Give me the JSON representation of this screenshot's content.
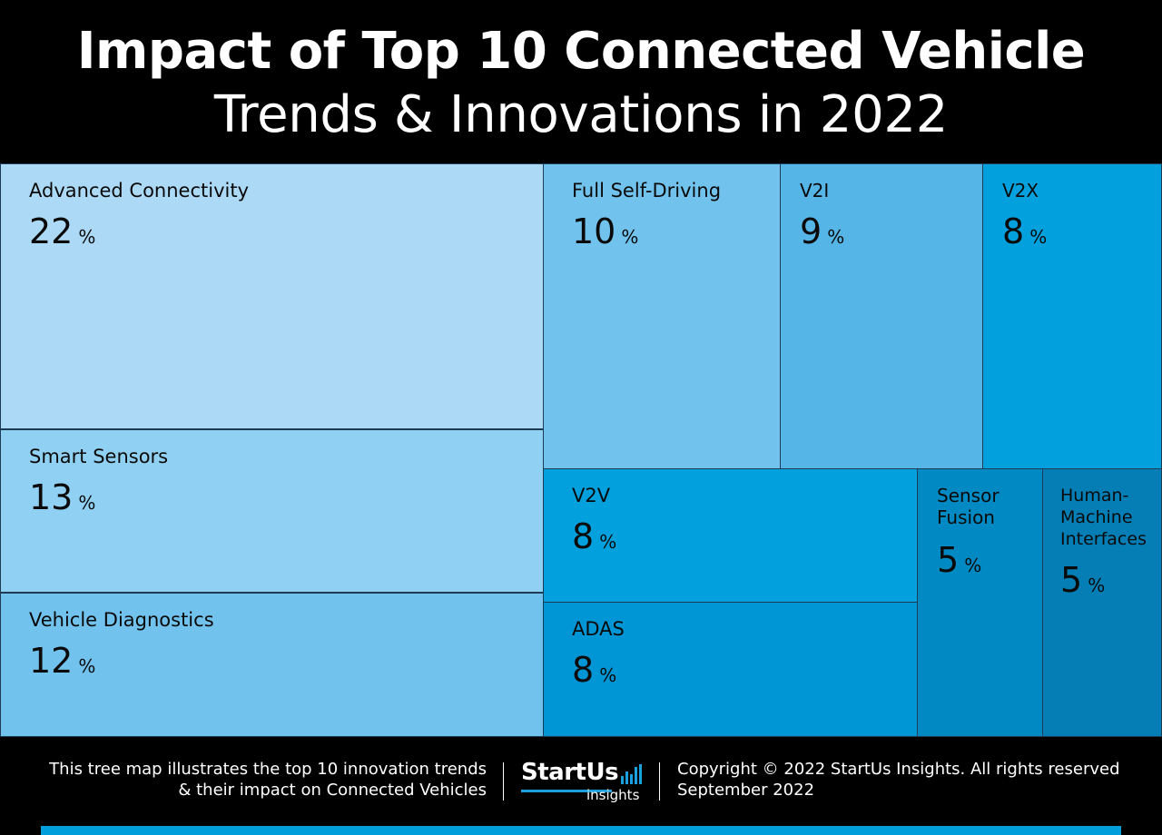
{
  "header": {
    "title": "Impact of Top 10 Connected Vehicle",
    "subtitle": "Trends & Innovations in 2022"
  },
  "chart_data": {
    "type": "treemap",
    "title": "Impact of Top 10 Connected Vehicle",
    "subtitle": "Trends & Innovations in 2022",
    "unit": "%",
    "items": [
      {
        "name": "Advanced Connectivity",
        "value": 22,
        "color": "#acd9f6"
      },
      {
        "name": "Smart Sensors",
        "value": 13,
        "color": "#90d0f2"
      },
      {
        "name": "Vehicle Diagnostics",
        "value": 12,
        "color": "#71c3ee"
      },
      {
        "name": "Full Self-Driving",
        "value": 10,
        "color": "#71c3ee"
      },
      {
        "name": "V2I",
        "value": 9,
        "color": "#55b5e7"
      },
      {
        "name": "V2X",
        "value": 8,
        "color": "#02a1de"
      },
      {
        "name": "V2V",
        "value": 8,
        "color": "#02a1de"
      },
      {
        "name": "ADAS",
        "value": 8,
        "color": "#0095d5"
      },
      {
        "name": "Sensor Fusion",
        "value": 5,
        "color": "#0189c3"
      },
      {
        "name": "Human-Machine Interfaces",
        "value": 5,
        "color": "#047eb5"
      }
    ]
  },
  "footer": {
    "description_line1": "This tree map illustrates the top 10 innovation trends",
    "description_line2": "& their impact on Connected Vehicles",
    "logo_main": "StartUs",
    "logo_sub": "insights",
    "copyright": "Copyright © 2022 StartUs Insights. All rights reserved",
    "date": "September 2022",
    "accent_color": "#009edb"
  }
}
